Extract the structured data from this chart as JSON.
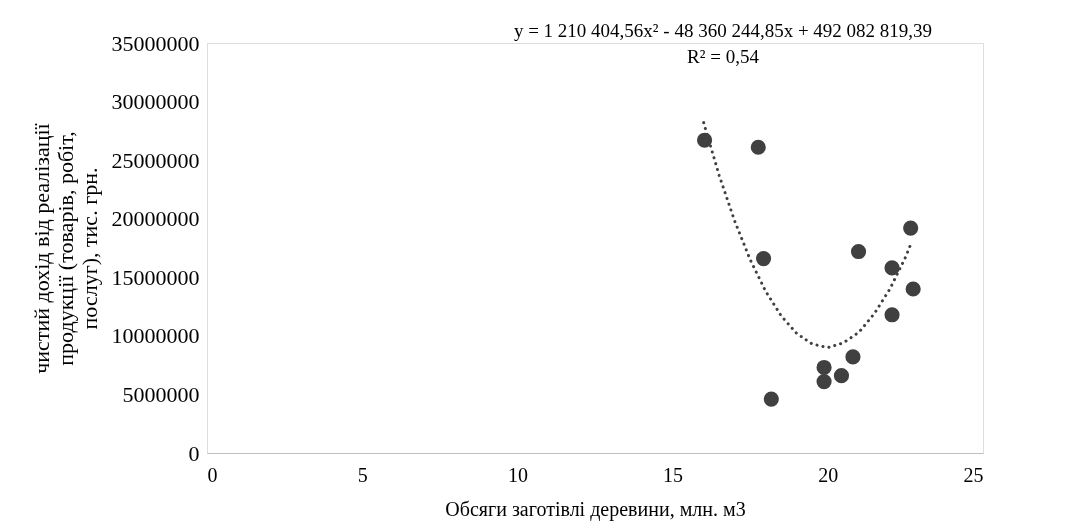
{
  "chart_data": {
    "type": "scatter",
    "xlabel": "Обсяги заготівлі деревини, млн. м3",
    "ylabel": "чистий дохід від реалізації продукції (товарів, робіт, послуг), тис. грн.",
    "annotations": [
      "y = 1 210 404,56x² - 48 360 244,85x + 492 082 819,39",
      "R² = 0,54"
    ],
    "series": [
      {
        "color": "#404040",
        "marker": "circle",
        "x": [
          16.03,
          17.76,
          17.93,
          18.18,
          19.88,
          19.88,
          20.44,
          20.81,
          20.99,
          22.07,
          22.07,
          22.67,
          22.75
        ],
        "values": [
          26700000,
          26100000,
          16600000,
          4600000,
          7300000,
          6100000,
          6600000,
          8200000,
          17200000,
          15800000,
          11800000,
          19200000,
          14000000
        ]
      },
      {
        "type": "line",
        "color": "#404040",
        "line_style": "dotted",
        "x": [
          16.0,
          16.5,
          17,
          17.5,
          18,
          18.5,
          19,
          19.5,
          20,
          20.5,
          21,
          21.5,
          22,
          22.5,
          22.7
        ],
        "values": [
          28200000,
          23700000,
          19800000,
          16500000,
          13800000,
          11700000,
          10200000,
          9300000,
          9000000,
          9400000,
          10300000,
          11900000,
          14000000,
          16700000,
          18000000
        ]
      }
    ],
    "xlim": [
      0,
      25
    ],
    "xticks": [
      0,
      5,
      10,
      15,
      20,
      25
    ],
    "ylim": [
      0,
      35000000
    ],
    "yticks": [
      0,
      5000000,
      10000000,
      15000000,
      20000000,
      25000000,
      30000000,
      35000000
    ],
    "grid": false
  }
}
